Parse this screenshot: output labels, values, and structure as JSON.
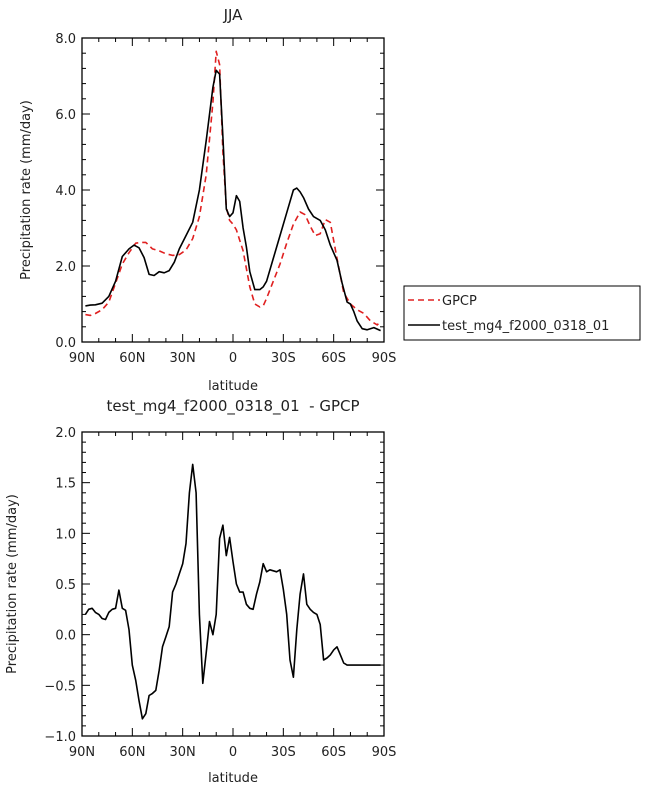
{
  "chart_data": [
    {
      "type": "line",
      "title": "JJA",
      "xlabel": "latitude",
      "ylabel": "Precipitation rate (mm/day)",
      "xlim": [
        90,
        -90
      ],
      "ylim": [
        0,
        8
      ],
      "x_tick_values": [
        90,
        60,
        30,
        0,
        -30,
        -60,
        -90
      ],
      "x_ticks": [
        "90N",
        "60N",
        "30N",
        "0",
        "30S",
        "60S",
        "90S"
      ],
      "y_tick_values": [
        0,
        2,
        4,
        6,
        8
      ],
      "y_ticks": [
        "0.0",
        "2.0",
        "4.0",
        "6.0",
        "8.0"
      ],
      "legend": {
        "placement": "right"
      },
      "series": [
        {
          "name": "GPCP",
          "color": "#e02020",
          "dash": true,
          "x": [
            88,
            85,
            82,
            78,
            74,
            70,
            66,
            62,
            58,
            55,
            52,
            48,
            44,
            40,
            36,
            32,
            28,
            24,
            20,
            16,
            12,
            10,
            8,
            6,
            4,
            2,
            0,
            -2,
            -6,
            -10,
            -13,
            -16,
            -18,
            -20,
            -24,
            -28,
            -32,
            -36,
            -40,
            -43,
            -46,
            -49,
            -52,
            -55,
            -58,
            -62,
            -66,
            -70,
            -74,
            -78,
            -82,
            -86,
            -88
          ],
          "y": [
            0.72,
            0.7,
            0.75,
            0.85,
            1.05,
            1.55,
            2.05,
            2.35,
            2.6,
            2.62,
            2.62,
            2.45,
            2.4,
            2.32,
            2.28,
            2.3,
            2.42,
            2.72,
            3.3,
            4.4,
            6.3,
            7.65,
            7.3,
            5.0,
            3.55,
            3.2,
            3.1,
            2.95,
            2.4,
            1.45,
            1.0,
            0.92,
            0.95,
            1.15,
            1.6,
            2.05,
            2.6,
            3.1,
            3.42,
            3.35,
            3.05,
            2.8,
            2.85,
            3.22,
            3.15,
            2.2,
            1.3,
            1.0,
            0.85,
            0.75,
            0.55,
            0.45,
            0.55
          ]
        },
        {
          "name": "test_mg4_f2000_0318_01",
          "color": "#000000",
          "dash": false,
          "x": [
            88,
            85,
            82,
            78,
            74,
            70,
            66,
            62,
            59,
            56,
            53,
            50,
            47,
            44,
            41,
            38,
            35,
            32,
            28,
            24,
            20,
            16,
            12,
            10,
            8,
            6,
            4,
            2,
            0,
            -2,
            -4,
            -6,
            -8,
            -10,
            -13,
            -16,
            -18,
            -20,
            -24,
            -28,
            -32,
            -36,
            -38,
            -40,
            -42,
            -45,
            -48,
            -52,
            -55,
            -58,
            -62,
            -65,
            -68,
            -70,
            -72,
            -74,
            -77,
            -80,
            -84,
            -88
          ],
          "y": [
            0.95,
            0.97,
            0.98,
            1.02,
            1.2,
            1.6,
            2.25,
            2.45,
            2.55,
            2.48,
            2.22,
            1.78,
            1.75,
            1.85,
            1.82,
            1.88,
            2.1,
            2.45,
            2.8,
            3.15,
            4.0,
            5.3,
            6.7,
            7.15,
            7.05,
            5.4,
            3.5,
            3.3,
            3.4,
            3.85,
            3.7,
            3.0,
            2.5,
            1.85,
            1.38,
            1.38,
            1.45,
            1.6,
            2.2,
            2.8,
            3.4,
            4.0,
            4.05,
            3.95,
            3.8,
            3.5,
            3.3,
            3.2,
            2.95,
            2.55,
            2.15,
            1.55,
            1.05,
            1.0,
            0.8,
            0.55,
            0.35,
            0.32,
            0.38,
            0.3
          ]
        }
      ]
    },
    {
      "type": "line",
      "title": "test_mg4_f2000_0318_01  - GPCP",
      "xlabel": "latitude",
      "ylabel": "Precipitation rate (mm/day)",
      "xlim": [
        90,
        -90
      ],
      "ylim": [
        -1.0,
        2.0
      ],
      "x_tick_values": [
        90,
        60,
        30,
        0,
        -30,
        -60,
        -90
      ],
      "x_ticks": [
        "90N",
        "60N",
        "30N",
        "0",
        "30S",
        "60S",
        "90S"
      ],
      "y_tick_values": [
        -1.0,
        -0.5,
        0.0,
        0.5,
        1.0,
        1.5,
        2.0
      ],
      "y_ticks": [
        "−1.0",
        "−0.5",
        "0.0",
        "0.5",
        "1.0",
        "1.5",
        "2.0"
      ],
      "series": [
        {
          "color": "#000000",
          "dash": false,
          "x": [
            88,
            86,
            84,
            82,
            80,
            78,
            76,
            74,
            72,
            70,
            68,
            66,
            64,
            62,
            60,
            58,
            56,
            54,
            52,
            50,
            48,
            46,
            44,
            42,
            40,
            38,
            36,
            34,
            32,
            30,
            28,
            26,
            24,
            22,
            20,
            18,
            16,
            14,
            12,
            10,
            8,
            6,
            4,
            2,
            0,
            -2,
            -4,
            -6,
            -8,
            -10,
            -12,
            -14,
            -16,
            -18,
            -20,
            -22,
            -24,
            -26,
            -28,
            -30,
            -32,
            -34,
            -36,
            -38,
            -40,
            -42,
            -44,
            -46,
            -48,
            -50,
            -52,
            -54,
            -56,
            -58,
            -60,
            -62,
            -64,
            -66,
            -68,
            -70,
            -72,
            -74,
            -76,
            -78,
            -80,
            -82,
            -84,
            -86,
            -88
          ],
          "y": [
            0.2,
            0.25,
            0.26,
            0.22,
            0.2,
            0.16,
            0.15,
            0.22,
            0.25,
            0.26,
            0.44,
            0.26,
            0.24,
            0.05,
            -0.3,
            -0.45,
            -0.65,
            -0.83,
            -0.78,
            -0.6,
            -0.58,
            -0.55,
            -0.35,
            -0.12,
            -0.02,
            0.08,
            0.42,
            0.5,
            0.6,
            0.7,
            0.9,
            1.4,
            1.68,
            1.4,
            0.2,
            -0.48,
            -0.18,
            0.13,
            0.0,
            0.2,
            0.95,
            1.08,
            0.78,
            0.96,
            0.72,
            0.5,
            0.42,
            0.42,
            0.3,
            0.26,
            0.25,
            0.4,
            0.52,
            0.7,
            0.62,
            0.64,
            0.63,
            0.62,
            0.64,
            0.45,
            0.2,
            -0.25,
            -0.42,
            0.05,
            0.4,
            0.6,
            0.3,
            0.25,
            0.22,
            0.2,
            0.1,
            -0.25,
            -0.23,
            -0.2,
            -0.15,
            -0.12,
            -0.2,
            -0.28,
            -0.3,
            -0.3,
            -0.3,
            -0.3,
            -0.3,
            -0.3,
            -0.3,
            -0.3,
            -0.3,
            -0.3,
            -0.3
          ]
        }
      ]
    }
  ]
}
